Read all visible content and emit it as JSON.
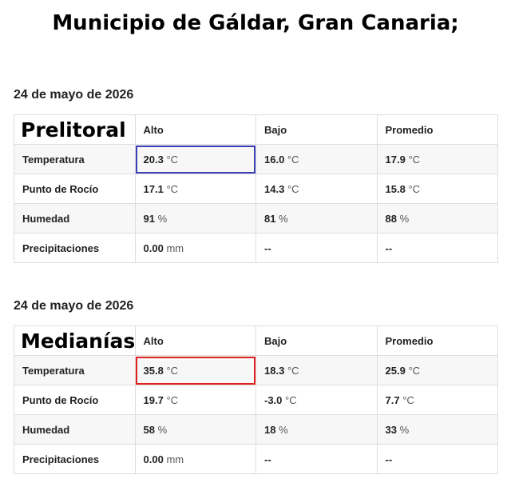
{
  "header": {
    "title": "Municipio de Gáldar, Gran Canaria;"
  },
  "sections": [
    {
      "date": "24 de mayo de 2026",
      "zone": "Prelitoral",
      "columns": [
        "Alto",
        "Bajo",
        "Promedio"
      ],
      "rows": [
        {
          "label": "Temperatura",
          "cells": [
            {
              "value": "20.3",
              "unit": "°C"
            },
            {
              "value": "16.0",
              "unit": "°C"
            },
            {
              "value": "17.9",
              "unit": "°C"
            }
          ]
        },
        {
          "label": "Punto de Rocío",
          "cells": [
            {
              "value": "17.1",
              "unit": "°C"
            },
            {
              "value": "14.3",
              "unit": "°C"
            },
            {
              "value": "15.8",
              "unit": "°C"
            }
          ]
        },
        {
          "label": "Humedad",
          "cells": [
            {
              "value": "91",
              "unit": "%"
            },
            {
              "value": "81",
              "unit": "%"
            },
            {
              "value": "88",
              "unit": "%"
            }
          ]
        },
        {
          "label": "Precipitaciones",
          "cells": [
            {
              "value": "0.00",
              "unit": "mm"
            },
            {
              "value": "--"
            },
            {
              "value": "--"
            }
          ]
        }
      ]
    },
    {
      "date": "24 de mayo de 2026",
      "zone": "Medianías",
      "columns": [
        "Alto",
        "Bajo",
        "Promedio"
      ],
      "rows": [
        {
          "label": "Temperatura",
          "cells": [
            {
              "value": "35.8",
              "unit": "°C"
            },
            {
              "value": "18.3",
              "unit": "°C"
            },
            {
              "value": "25.9",
              "unit": "°C"
            }
          ]
        },
        {
          "label": "Punto de Rocío",
          "cells": [
            {
              "value": "19.7",
              "unit": "°C"
            },
            {
              "value": "-3.0",
              "unit": "°C"
            },
            {
              "value": "7.7",
              "unit": "°C"
            }
          ]
        },
        {
          "label": "Humedad",
          "cells": [
            {
              "value": "58",
              "unit": "%"
            },
            {
              "value": "18",
              "unit": "%"
            },
            {
              "value": "33",
              "unit": "%"
            }
          ]
        },
        {
          "label": "Precipitaciones",
          "cells": [
            {
              "value": "0.00",
              "unit": "mm"
            },
            {
              "value": "--"
            },
            {
              "value": "--"
            }
          ]
        }
      ]
    }
  ]
}
